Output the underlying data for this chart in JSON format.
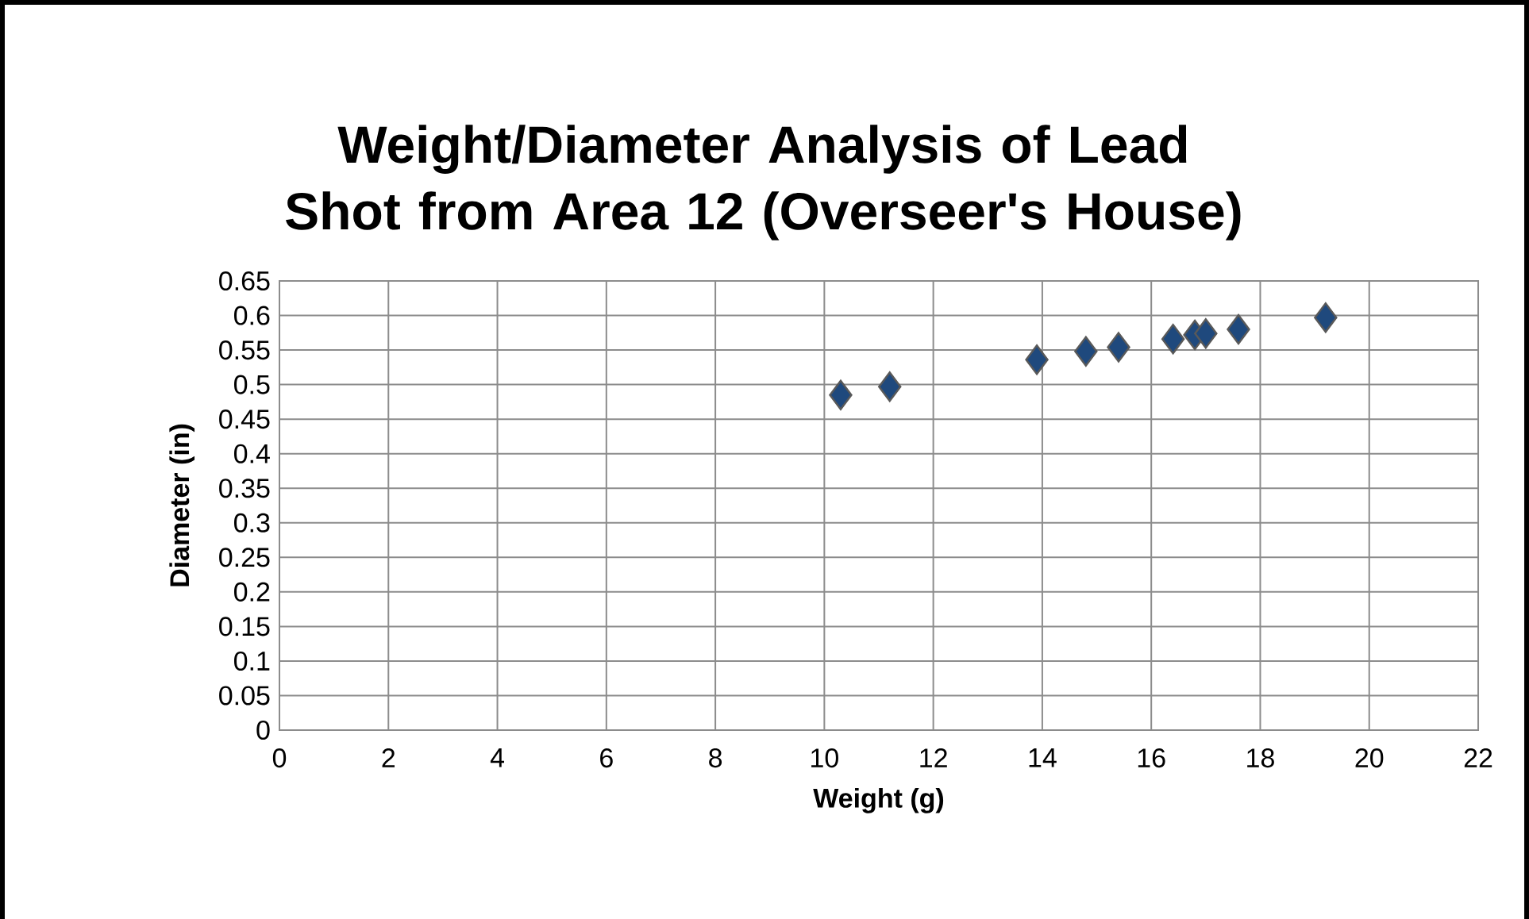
{
  "chart_data": {
    "type": "scatter",
    "title": "Weight/Diameter Analysis of Lead Shot from Area 12 (Overseer's House)",
    "xlabel": "Weight (g)",
    "ylabel": "Diameter (in)",
    "x": [
      10.3,
      11.2,
      13.9,
      14.8,
      15.4,
      16.4,
      16.8,
      17.0,
      17.6,
      19.2
    ],
    "values": [
      0.485,
      0.497,
      0.536,
      0.548,
      0.554,
      0.566,
      0.572,
      0.574,
      0.58,
      0.597
    ],
    "color": "#1f497d",
    "marker": "diamond",
    "grid": true,
    "xlim": [
      0,
      22
    ],
    "xticks": [
      0,
      2,
      4,
      6,
      8,
      10,
      12,
      14,
      16,
      18,
      20,
      22
    ],
    "ylim": [
      0,
      0.65
    ],
    "yticks": [
      0,
      0.05,
      0.1,
      0.15,
      0.2,
      0.25,
      0.3,
      0.35,
      0.4,
      0.45,
      0.5,
      0.55,
      0.6,
      0.65
    ]
  }
}
